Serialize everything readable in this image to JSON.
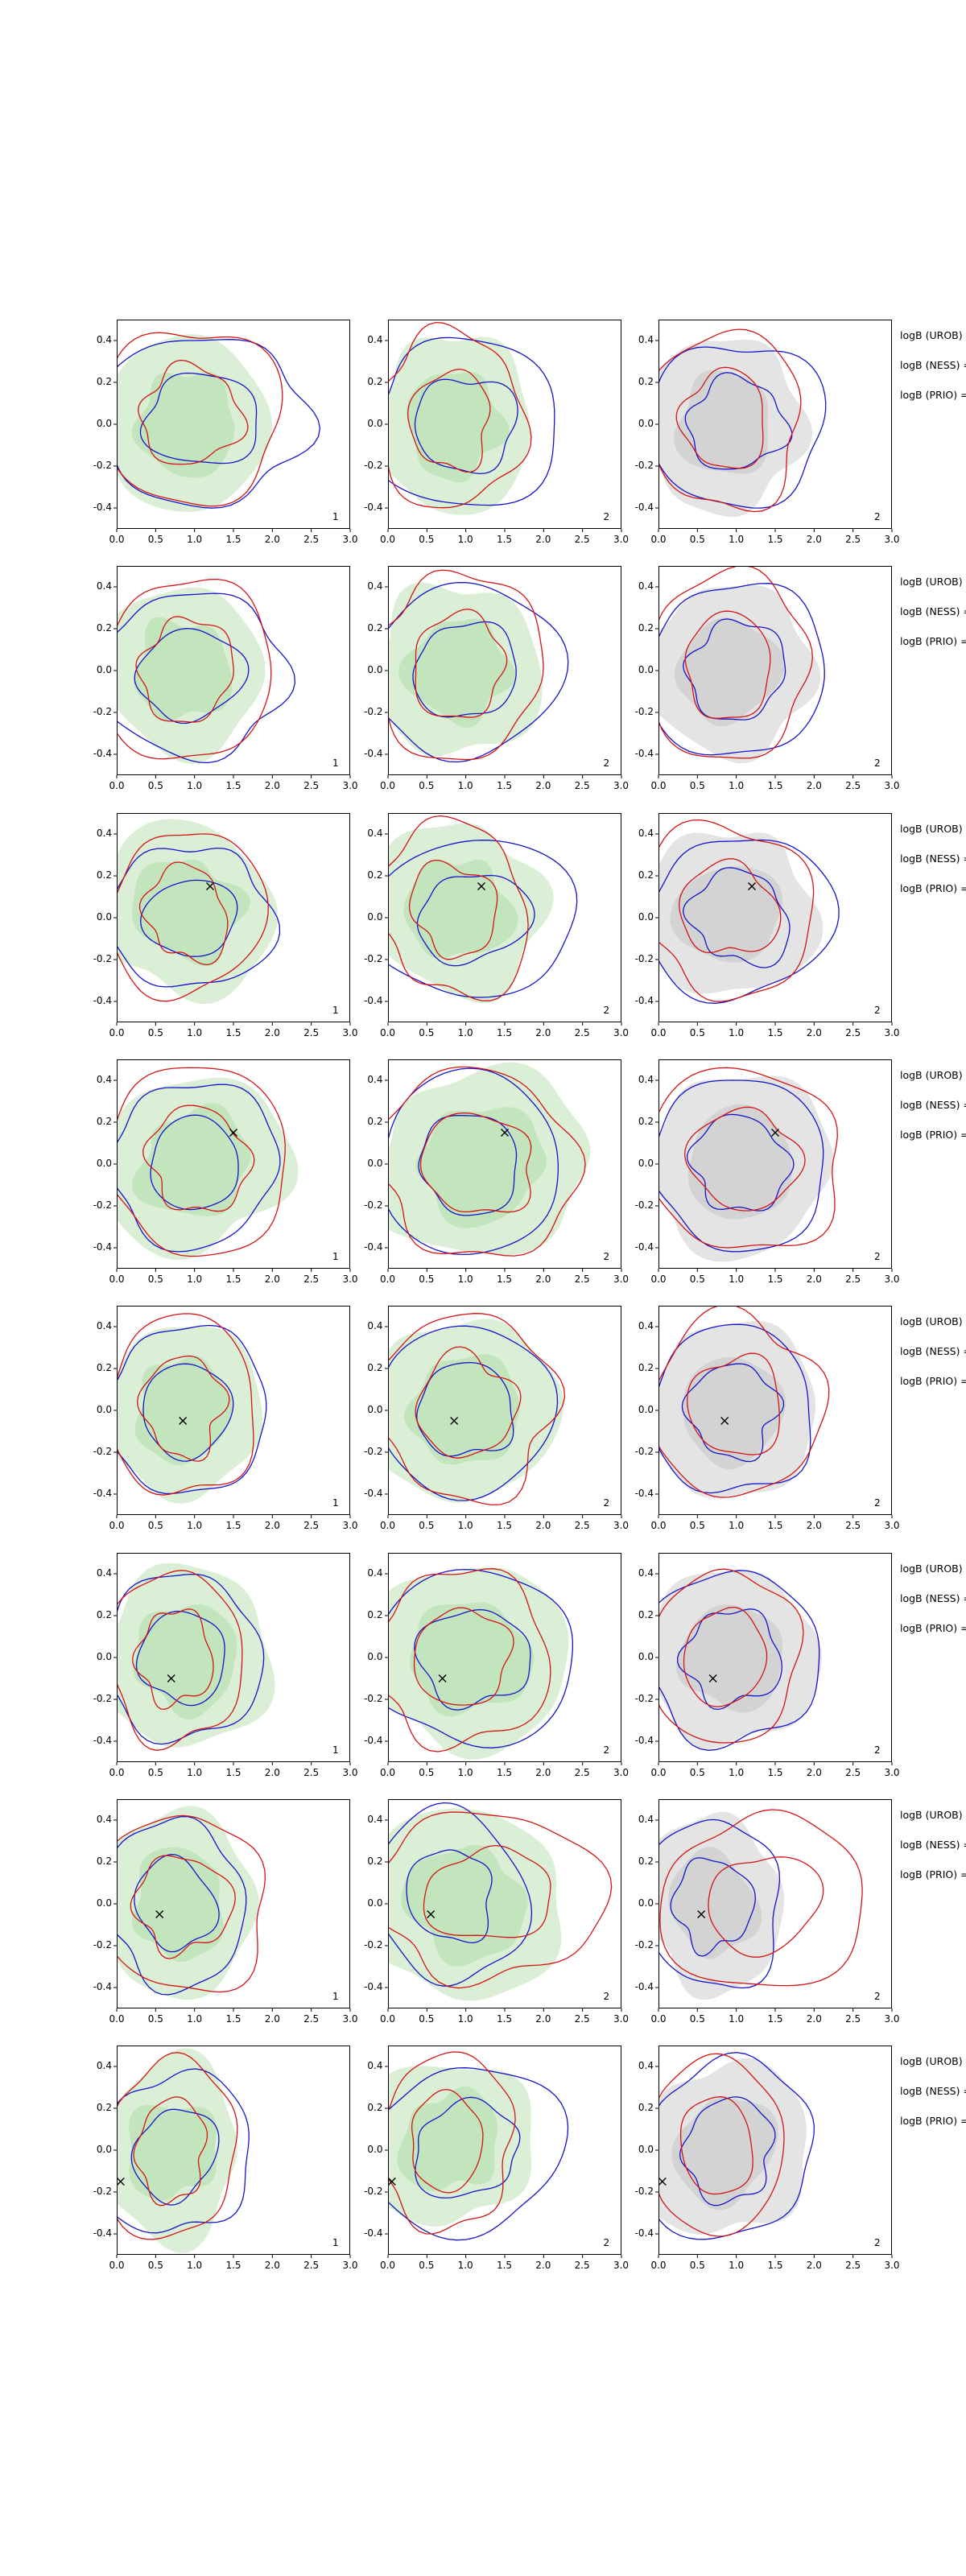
{
  "axes": {
    "x_tick_labels": [
      "0.0",
      "0.5",
      "1.0",
      "1.5",
      "2.0",
      "2.5",
      "3.0"
    ],
    "x_tick_values": [
      0.0,
      0.5,
      1.0,
      1.5,
      2.0,
      2.5,
      3.0
    ],
    "y_tick_labels": [
      "0.4",
      "0.2",
      "0.0",
      "-0.2",
      "-0.4"
    ],
    "y_tick_values": [
      0.4,
      0.2,
      0.0,
      -0.2,
      -0.4
    ],
    "xlim": [
      0.0,
      3.0
    ],
    "ylim": [
      -0.5,
      0.5
    ]
  },
  "colors": {
    "blue_line": "#1414cc",
    "red_line": "#d41414",
    "green_fill_outer": "#daefd5",
    "green_fill_inner": "#c3e5bd",
    "gray_fill_outer": "#e4e4e4",
    "gray_fill_inner": "#d3d3d3",
    "spine": "#000000",
    "marker": "#000000"
  },
  "chart_data": {
    "type": "contour",
    "description": "8x3 grid of 2D KDE contour panels; columns 1-2 have green filled density, column 3 gray filled density; blue and red contour lines overlaid; black x marker where given; contour specs are [cx, cy, rx, ry] in data coordinates",
    "rows": [
      {
        "legend": [
          "logB (UROB) =",
          "logB (NESS) =",
          "logB (PRIO) ="
        ],
        "marker": null,
        "panels": [
          {
            "label": "1",
            "fill": "green",
            "seed": 10,
            "fill_contour": [
              0.9,
              0.0,
              1.05,
              0.42
            ],
            "blue_contour": [
              1.1,
              0.02,
              1.35,
              0.4
            ],
            "red_contour": [
              0.95,
              0.04,
              1.18,
              0.42
            ]
          },
          {
            "label": "2",
            "fill": "green",
            "seed": 11,
            "fill_contour": [
              0.85,
              0.0,
              1.0,
              0.43
            ],
            "blue_contour": [
              1.0,
              0.0,
              1.2,
              0.41
            ],
            "red_contour": [
              0.8,
              0.02,
              0.95,
              0.42
            ]
          },
          {
            "label": "2",
            "fill": "gray",
            "seed": 12,
            "fill_contour": [
              0.85,
              0.0,
              1.0,
              0.42
            ],
            "blue_contour": [
              1.0,
              0.0,
              1.15,
              0.39
            ],
            "red_contour": [
              0.85,
              0.02,
              1.0,
              0.42
            ]
          }
        ]
      },
      {
        "legend": [
          "logB (UROB) =",
          "logB (NESS) =",
          "logB (PRIO) ="
        ],
        "marker": null,
        "panels": [
          {
            "label": "1",
            "fill": "green",
            "seed": 20,
            "fill_contour": [
              0.85,
              0.0,
              1.0,
              0.41
            ],
            "blue_contour": [
              0.95,
              -0.02,
              1.2,
              0.4
            ],
            "red_contour": [
              0.9,
              0.0,
              1.1,
              0.44
            ]
          },
          {
            "label": "2",
            "fill": "green",
            "seed": 21,
            "fill_contour": [
              0.9,
              0.0,
              1.05,
              0.42
            ],
            "blue_contour": [
              1.0,
              0.0,
              1.2,
              0.42
            ],
            "red_contour": [
              0.9,
              0.02,
              1.1,
              0.44
            ]
          },
          {
            "label": "2",
            "fill": "gray",
            "seed": 22,
            "fill_contour": [
              0.9,
              0.0,
              1.05,
              0.42
            ],
            "blue_contour": [
              1.0,
              0.0,
              1.15,
              0.42
            ],
            "red_contour": [
              0.9,
              0.02,
              1.05,
              0.44
            ]
          }
        ]
      },
      {
        "legend": [
          "logB (UROB) =",
          "logB (NESS) =",
          "logB (PRIO) ="
        ],
        "marker": [
          1.2,
          0.15
        ],
        "panels": [
          {
            "label": "1",
            "fill": "green",
            "seed": 30,
            "fill_contour": [
              0.9,
              0.04,
              1.1,
              0.42
            ],
            "blue_contour": [
              0.95,
              0.0,
              1.0,
              0.36
            ],
            "red_contour": [
              0.9,
              0.02,
              0.95,
              0.41
            ]
          },
          {
            "label": "2",
            "fill": "green",
            "seed": 31,
            "fill_contour": [
              0.9,
              0.04,
              1.05,
              0.43
            ],
            "blue_contour": [
              1.1,
              0.0,
              1.25,
              0.4
            ],
            "red_contour": [
              0.85,
              0.04,
              0.95,
              0.42
            ]
          },
          {
            "label": "2",
            "fill": "gray",
            "seed": 32,
            "fill_contour": [
              0.9,
              0.02,
              1.05,
              0.42
            ],
            "blue_contour": [
              1.05,
              0.0,
              1.15,
              0.4
            ],
            "red_contour": [
              0.9,
              0.04,
              1.05,
              0.43
            ]
          }
        ]
      },
      {
        "legend": [
          "logB (UROB) =",
          "logB (NESS) =",
          "logB (PRIO) ="
        ],
        "marker": [
          1.5,
          0.15
        ],
        "panels": [
          {
            "label": "1",
            "fill": "green",
            "seed": 40,
            "fill_contour": [
              1.0,
              0.0,
              1.2,
              0.42
            ],
            "blue_contour": [
              1.0,
              0.0,
              1.1,
              0.38
            ],
            "red_contour": [
              1.05,
              0.02,
              1.2,
              0.44
            ]
          },
          {
            "label": "2",
            "fill": "green",
            "seed": 41,
            "fill_contour": [
              1.2,
              0.0,
              1.4,
              0.44
            ],
            "blue_contour": [
              1.05,
              0.0,
              1.2,
              0.42
            ],
            "red_contour": [
              1.15,
              0.0,
              1.3,
              0.44
            ]
          },
          {
            "label": "2",
            "fill": "gray",
            "seed": 42,
            "fill_contour": [
              1.05,
              0.0,
              1.2,
              0.42
            ],
            "blue_contour": [
              1.05,
              0.0,
              1.15,
              0.4
            ],
            "red_contour": [
              1.1,
              0.02,
              1.25,
              0.44
            ]
          }
        ]
      },
      {
        "legend": [
          "logB (UROB) =",
          "logB (NESS) =",
          "logB (PRIO) ="
        ],
        "marker": [
          0.85,
          -0.05
        ],
        "panels": [
          {
            "label": "1",
            "fill": "green",
            "seed": 50,
            "fill_contour": [
              0.85,
              0.0,
              1.0,
              0.42
            ],
            "blue_contour": [
              0.9,
              0.0,
              1.05,
              0.4
            ],
            "red_contour": [
              0.85,
              0.02,
              0.95,
              0.43
            ]
          },
          {
            "label": "2",
            "fill": "green",
            "seed": 51,
            "fill_contour": [
              1.0,
              0.0,
              1.2,
              0.43
            ],
            "blue_contour": [
              1.0,
              0.0,
              1.15,
              0.4
            ],
            "red_contour": [
              1.0,
              0.02,
              1.15,
              0.44
            ]
          },
          {
            "label": "2",
            "fill": "gray",
            "seed": 52,
            "fill_contour": [
              0.95,
              0.0,
              1.1,
              0.42
            ],
            "blue_contour": [
              0.95,
              0.0,
              1.05,
              0.4
            ],
            "red_contour": [
              1.0,
              0.02,
              1.1,
              0.43
            ]
          }
        ]
      },
      {
        "legend": [
          "logB (UROB) =",
          "logB (NESS) =",
          "logB (PRIO) ="
        ],
        "marker": [
          0.7,
          -0.1
        ],
        "panels": [
          {
            "label": "1",
            "fill": "green",
            "seed": 60,
            "fill_contour": [
              0.9,
              0.0,
              1.1,
              0.43
            ],
            "blue_contour": [
              0.85,
              0.0,
              1.0,
              0.4
            ],
            "red_contour": [
              0.75,
              0.0,
              0.85,
              0.42
            ]
          },
          {
            "label": "2",
            "fill": "green",
            "seed": 61,
            "fill_contour": [
              1.05,
              0.0,
              1.3,
              0.44
            ],
            "blue_contour": [
              1.1,
              0.0,
              1.3,
              0.42
            ],
            "red_contour": [
              0.95,
              0.0,
              1.1,
              0.43
            ]
          },
          {
            "label": "2",
            "fill": "gray",
            "seed": 62,
            "fill_contour": [
              0.95,
              0.0,
              1.1,
              0.42
            ],
            "blue_contour": [
              0.95,
              0.0,
              1.1,
              0.42
            ],
            "red_contour": [
              0.85,
              0.0,
              0.95,
              0.42
            ]
          }
        ]
      },
      {
        "legend": [
          "logB (UROB) =",
          "logB (NESS) =",
          "logB (PRIO) ="
        ],
        "marker": [
          0.55,
          -0.05
        ],
        "panels": [
          {
            "label": "1",
            "fill": "green",
            "seed": 70,
            "fill_contour": [
              0.8,
              0.0,
              1.0,
              0.43
            ],
            "blue_contour": [
              0.75,
              0.0,
              0.9,
              0.4
            ],
            "red_contour": [
              0.85,
              0.0,
              1.05,
              0.44
            ]
          },
          {
            "label": "2",
            "fill": "green",
            "seed": 71,
            "fill_contour": [
              1.0,
              0.0,
              1.3,
              0.44
            ],
            "blue_contour": [
              0.8,
              0.04,
              0.95,
              0.42
            ],
            "red_contour": [
              1.3,
              0.04,
              1.4,
              0.42
            ]
          },
          {
            "label": "2",
            "fill": "gray",
            "seed": 72,
            "fill_contour": [
              0.7,
              0.0,
              0.9,
              0.42
            ],
            "blue_contour": [
              0.7,
              0.0,
              0.85,
              0.42
            ],
            "red_contour": [
              1.35,
              0.0,
              1.25,
              0.44
            ]
          }
        ]
      },
      {
        "legend": [
          "logB (UROB) =",
          "logB (NESS) =",
          "logB (PRIO) ="
        ],
        "marker": [
          0.05,
          -0.15
        ],
        "panels": [
          {
            "label": "1",
            "fill": "green",
            "seed": 80,
            "fill_contour": [
              0.7,
              0.0,
              0.9,
              0.42
            ],
            "blue_contour": [
              0.75,
              -0.02,
              0.95,
              0.4
            ],
            "red_contour": [
              0.7,
              0.0,
              0.85,
              0.42
            ]
          },
          {
            "label": "2",
            "fill": "green",
            "seed": 81,
            "fill_contour": [
              0.8,
              0.04,
              1.0,
              0.42
            ],
            "blue_contour": [
              1.0,
              0.0,
              1.25,
              0.4
            ],
            "red_contour": [
              0.75,
              0.04,
              0.9,
              0.4
            ]
          },
          {
            "label": "2",
            "fill": "gray",
            "seed": 82,
            "fill_contour": [
              0.85,
              0.0,
              1.05,
              0.43
            ],
            "blue_contour": [
              0.9,
              0.0,
              1.1,
              0.42
            ],
            "red_contour": [
              0.75,
              0.02,
              0.9,
              0.4
            ]
          }
        ]
      }
    ]
  }
}
